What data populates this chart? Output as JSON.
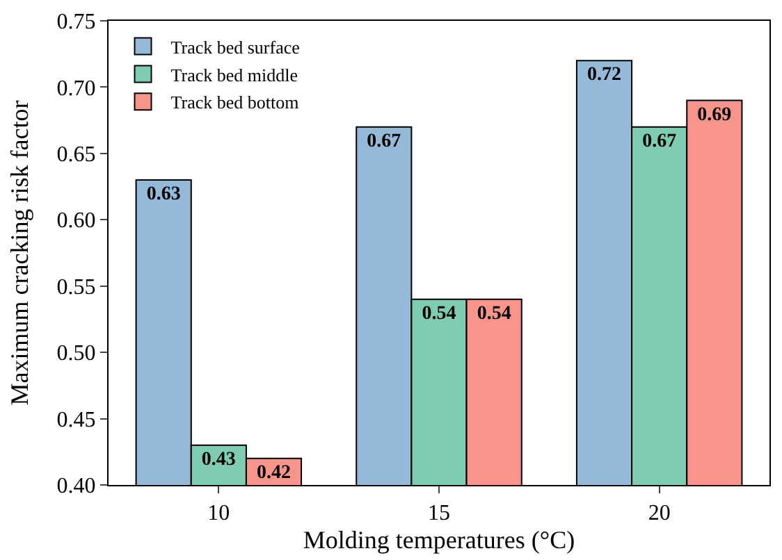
{
  "chart_data": {
    "type": "bar",
    "xlabel": "Molding temperatures (°C)",
    "ylabel": "Maximum cracking risk factor",
    "categories": [
      "10",
      "15",
      "20"
    ],
    "series": [
      {
        "name": "Track bed surface",
        "color": "#95b9d9",
        "values": [
          0.63,
          0.67,
          0.72
        ]
      },
      {
        "name": "Track bed middle",
        "color": "#7ecdb3",
        "values": [
          0.43,
          0.54,
          0.67
        ]
      },
      {
        "name": "Track bed bottom",
        "color": "#f8958a",
        "values": [
          0.42,
          0.54,
          0.69
        ]
      }
    ],
    "ylim": [
      0.4,
      0.75
    ],
    "yticks": [
      {
        "value": 0.4,
        "label": "0.40"
      },
      0.45,
      {
        "value": 0.5,
        "label": "0.50"
      },
      0.55,
      {
        "value": 0.6,
        "label": "0.60"
      },
      0.65,
      {
        "value": 0.7,
        "label": "0.70"
      },
      0.75
    ],
    "data_labels": true,
    "legend": "top left"
  }
}
